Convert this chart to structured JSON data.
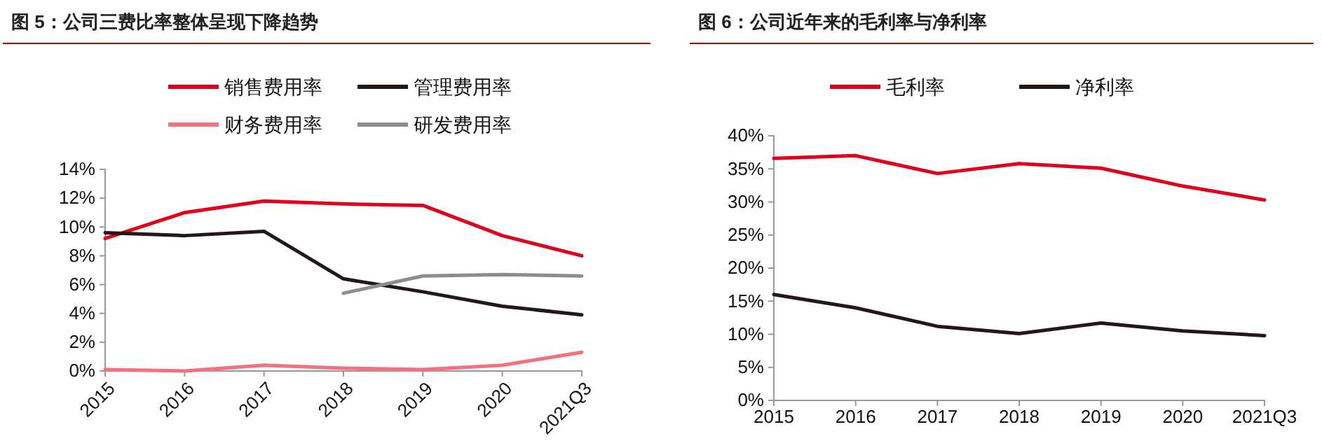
{
  "chart_data": [
    {
      "type": "line",
      "title": "图 5：公司三费比率整体呈现下降趋势",
      "categories": [
        "2015",
        "2016",
        "2017",
        "2018",
        "2019",
        "2020",
        "2021Q3"
      ],
      "series": [
        {
          "name": "销售费用率",
          "color": "#e0001b",
          "values": [
            9.2,
            11.0,
            11.8,
            11.6,
            11.5,
            9.4,
            8.0
          ]
        },
        {
          "name": "管理费用率",
          "color": "#231815",
          "values": [
            9.6,
            9.4,
            9.7,
            6.4,
            5.5,
            4.5,
            3.9
          ]
        },
        {
          "name": "财务费用率",
          "color": "#f4707f",
          "values": [
            0.1,
            0.0,
            0.4,
            0.2,
            0.1,
            0.4,
            1.3
          ]
        },
        {
          "name": "研发费用率",
          "color": "#8c8c8c",
          "values": [
            null,
            null,
            null,
            5.4,
            6.6,
            6.7,
            6.6
          ]
        }
      ],
      "ylim": [
        0,
        14
      ],
      "yticks": [
        {
          "value": 0,
          "label": "0%"
        },
        {
          "value": 2,
          "label": "2%"
        },
        {
          "value": 4,
          "label": "4%"
        },
        {
          "value": 6,
          "label": "6%"
        },
        {
          "value": 8,
          "label": "8%"
        },
        {
          "value": 10,
          "label": "10%"
        },
        {
          "value": 12,
          "label": "12%"
        },
        {
          "value": 14,
          "label": "14%"
        }
      ],
      "legend": "top",
      "grid": false,
      "marker": "none",
      "line_style": "solid"
    },
    {
      "type": "line",
      "title": "图 6：公司近年来的毛利率与净利率",
      "categories": [
        "2015",
        "2016",
        "2017",
        "2018",
        "2019",
        "2020",
        "2021Q3"
      ],
      "series": [
        {
          "name": "毛利率",
          "color": "#e0001b",
          "values": [
            36.6,
            37.0,
            34.3,
            35.8,
            35.1,
            32.4,
            30.3
          ]
        },
        {
          "name": "净利率",
          "color": "#231815",
          "values": [
            16.0,
            14.0,
            11.2,
            10.1,
            11.7,
            10.5,
            9.8
          ]
        }
      ],
      "ylim": [
        0,
        40
      ],
      "yticks": [
        {
          "value": 0,
          "label": "0%"
        },
        {
          "value": 5,
          "label": "5%"
        },
        {
          "value": 10,
          "label": "10%"
        },
        {
          "value": 15,
          "label": "15%"
        },
        {
          "value": 20,
          "label": "20%"
        },
        {
          "value": 25,
          "label": "25%"
        },
        {
          "value": 30,
          "label": "30%"
        },
        {
          "value": 35,
          "label": "35%"
        },
        {
          "value": 40,
          "label": "40%"
        }
      ],
      "legend": "top",
      "grid": false,
      "marker": "none",
      "line_style": "solid"
    }
  ]
}
